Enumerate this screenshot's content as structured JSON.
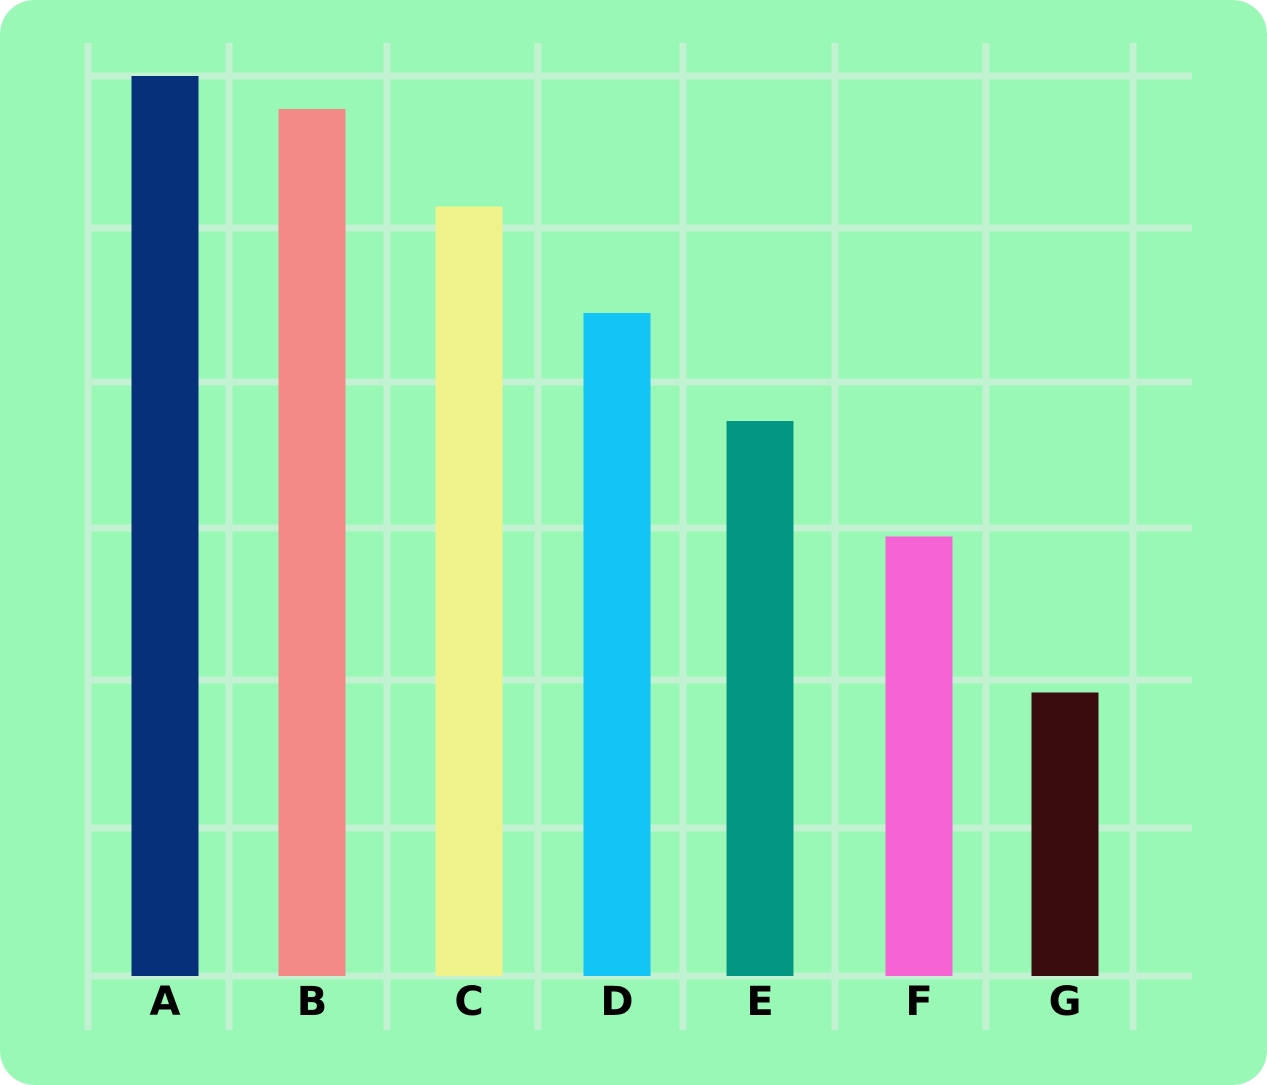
{
  "chart_data": {
    "type": "bar",
    "title": "",
    "xlabel": "",
    "ylabel": "",
    "categories": [
      "A",
      "B",
      "C",
      "D",
      "E",
      "F",
      "G"
    ],
    "values": [
      6.0,
      5.78,
      5.13,
      4.42,
      3.7,
      2.93,
      1.89
    ],
    "ylim": [
      0,
      6
    ],
    "grid": true,
    "legend": "none",
    "colors": [
      "#06307a",
      "#f48a88",
      "#f0f28c",
      "#13c4f7",
      "#039783",
      "#f663d4",
      "#3a0c0e"
    ],
    "background": "#99f8b6",
    "grid_color": "#c2f2d2"
  }
}
